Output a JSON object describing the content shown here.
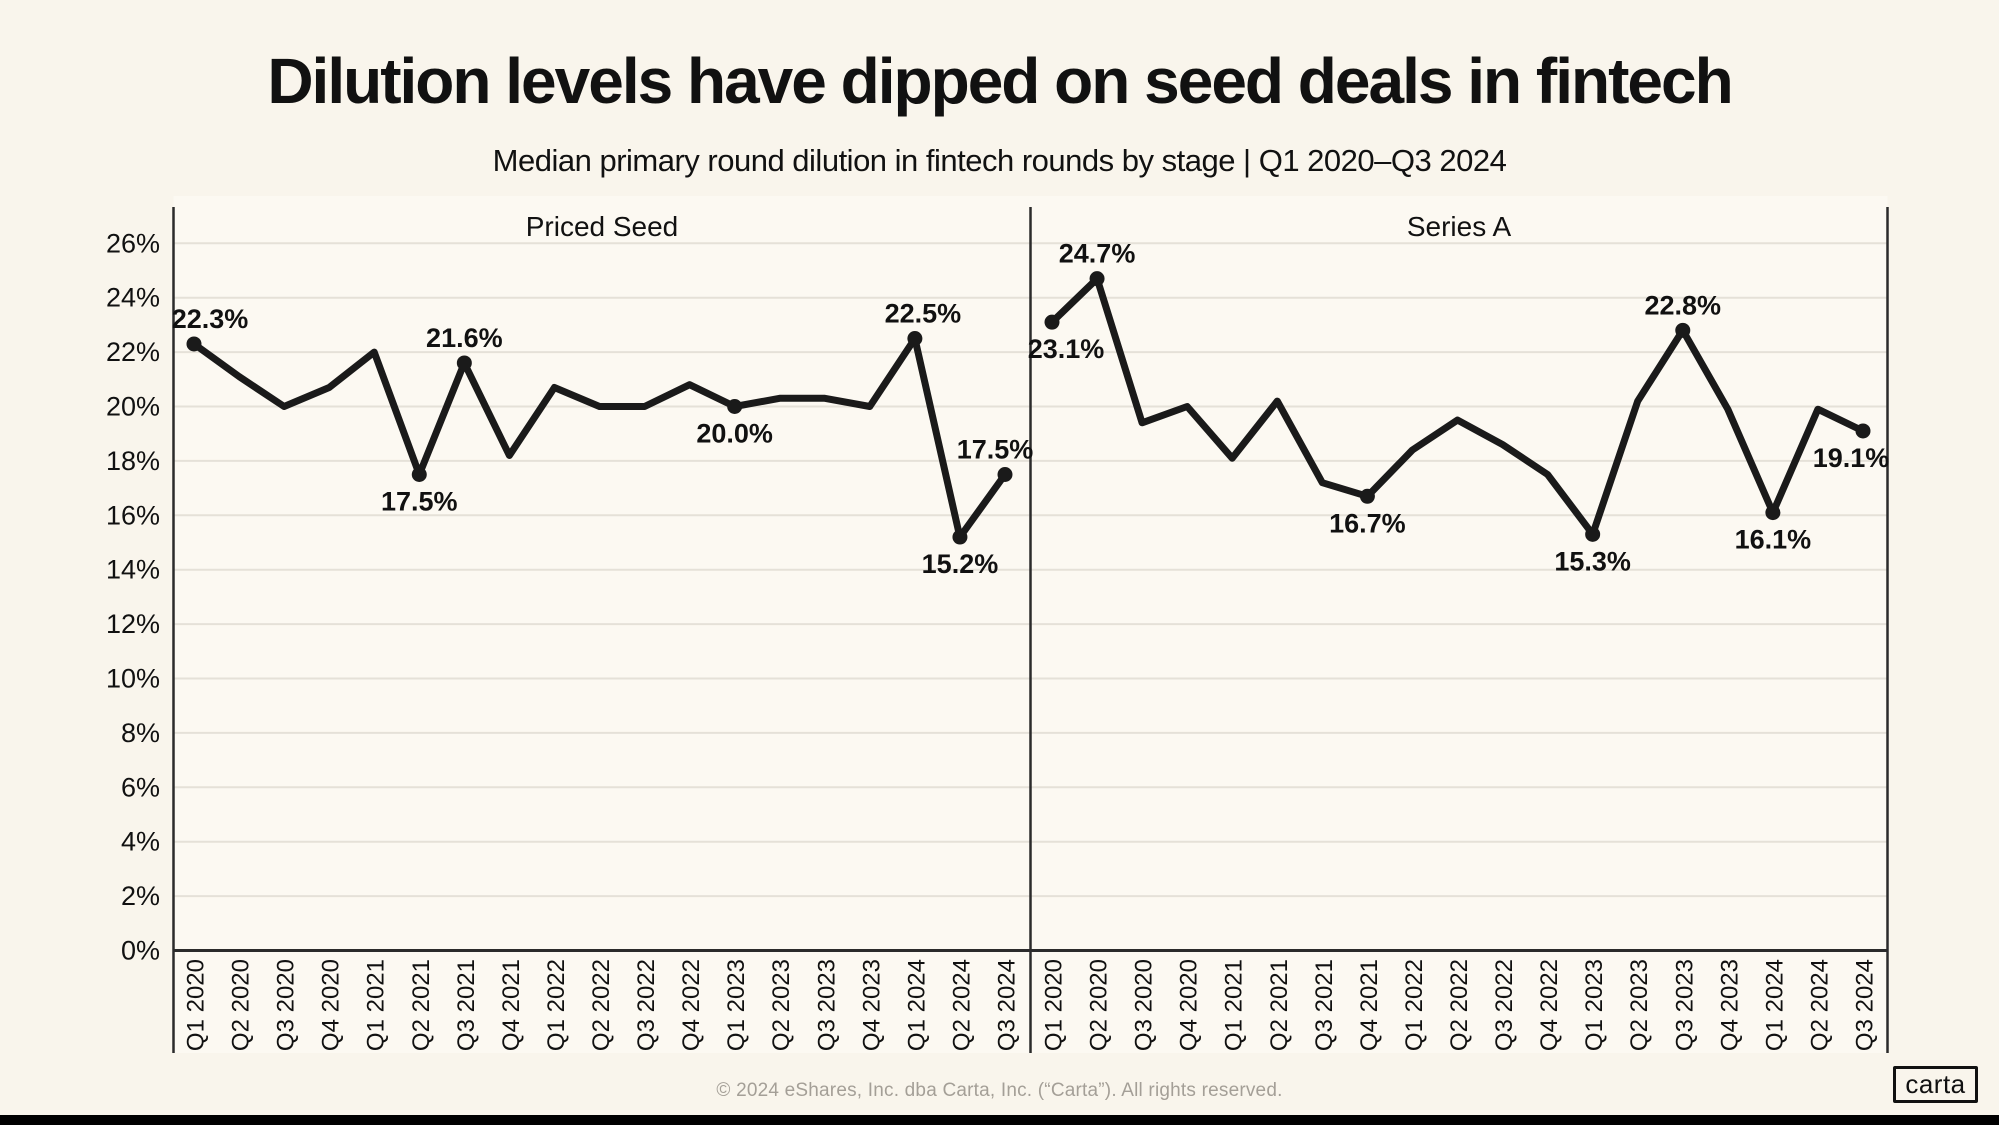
{
  "page": {
    "title": "Dilution levels have dipped on seed deals in fintech",
    "subtitle": "Median primary round dilution in fintech rounds by stage | Q1 2020–Q3 2024",
    "footer": "© 2024 eShares, Inc. dba Carta, Inc. (“Carta”). All rights reserved.",
    "logo_label": "carta",
    "colors": {
      "background": "#f9f5ec",
      "plot_background": "#fcf9f2",
      "line": "#1a1a1a",
      "gridline": "#e5e1d8",
      "axis": "#2b2b2b",
      "text": "#111111",
      "muted_text": "#a49f97",
      "bottom_bar": "#000000"
    }
  },
  "chart_data": {
    "type": "line",
    "unit": "%",
    "title": "Dilution levels have dipped on seed deals in fintech",
    "subtitle": "Median primary round dilution in fintech rounds by stage | Q1 2020–Q3 2024",
    "grid": "horizontal",
    "legend_position": "panel-titles-top",
    "ylim": [
      0,
      27.3
    ],
    "yticks": [
      {
        "value": 0,
        "label": "0%"
      },
      {
        "value": 2,
        "label": "2%"
      },
      {
        "value": 4,
        "label": "4%"
      },
      {
        "value": 6,
        "label": "6%"
      },
      {
        "value": 8,
        "label": "8%"
      },
      {
        "value": 10,
        "label": "10%"
      },
      {
        "value": 12,
        "label": "12%"
      },
      {
        "value": 14,
        "label": "14%"
      },
      {
        "value": 16,
        "label": "16%"
      },
      {
        "value": 18,
        "label": "18%"
      },
      {
        "value": 20,
        "label": "20%"
      },
      {
        "value": 22,
        "label": "22%"
      },
      {
        "value": 24,
        "label": "24%"
      },
      {
        "value": 26,
        "label": "26%"
      }
    ],
    "categories": [
      "Q1 2020",
      "Q2 2020",
      "Q3 2020",
      "Q4 2020",
      "Q1 2021",
      "Q2 2021",
      "Q3 2021",
      "Q4 2021",
      "Q1 2022",
      "Q2 2022",
      "Q3 2022",
      "Q4 2022",
      "Q1 2023",
      "Q2 2023",
      "Q3 2023",
      "Q4 2023",
      "Q1 2024",
      "Q2 2024",
      "Q3 2024"
    ],
    "series": [
      {
        "name": "Priced Seed",
        "values": [
          22.3,
          21.1,
          20.0,
          20.7,
          22.0,
          17.5,
          21.6,
          18.2,
          20.7,
          20.0,
          20.0,
          20.8,
          20.0,
          20.3,
          20.3,
          20.0,
          22.5,
          15.2,
          17.5
        ],
        "point_labels": [
          {
            "i": 0,
            "text": "22.3%",
            "pos": "above",
            "dx": 16
          },
          {
            "i": 5,
            "text": "17.5%",
            "pos": "below",
            "dx": 0
          },
          {
            "i": 6,
            "text": "21.6%",
            "pos": "above",
            "dx": 0
          },
          {
            "i": 12,
            "text": "20.0%",
            "pos": "below",
            "dx": 0
          },
          {
            "i": 16,
            "text": "22.5%",
            "pos": "above",
            "dx": 8
          },
          {
            "i": 17,
            "text": "15.2%",
            "pos": "below",
            "dx": 0
          },
          {
            "i": 18,
            "text": "17.5%",
            "pos": "above",
            "dx": -10
          }
        ]
      },
      {
        "name": "Series A",
        "values": [
          23.1,
          24.7,
          19.4,
          20.0,
          18.1,
          20.2,
          17.2,
          16.7,
          18.4,
          19.5,
          18.6,
          17.5,
          15.3,
          20.2,
          22.8,
          19.9,
          16.1,
          19.9,
          19.1
        ],
        "point_labels": [
          {
            "i": 0,
            "text": "23.1%",
            "pos": "below",
            "dx": 14
          },
          {
            "i": 1,
            "text": "24.7%",
            "pos": "above",
            "dx": 0
          },
          {
            "i": 7,
            "text": "16.7%",
            "pos": "below",
            "dx": 0
          },
          {
            "i": 12,
            "text": "15.3%",
            "pos": "below",
            "dx": 0
          },
          {
            "i": 14,
            "text": "22.8%",
            "pos": "above",
            "dx": 0
          },
          {
            "i": 16,
            "text": "16.1%",
            "pos": "below",
            "dx": 0
          },
          {
            "i": 18,
            "text": "19.1%",
            "pos": "below",
            "dx": -12
          }
        ]
      }
    ]
  }
}
